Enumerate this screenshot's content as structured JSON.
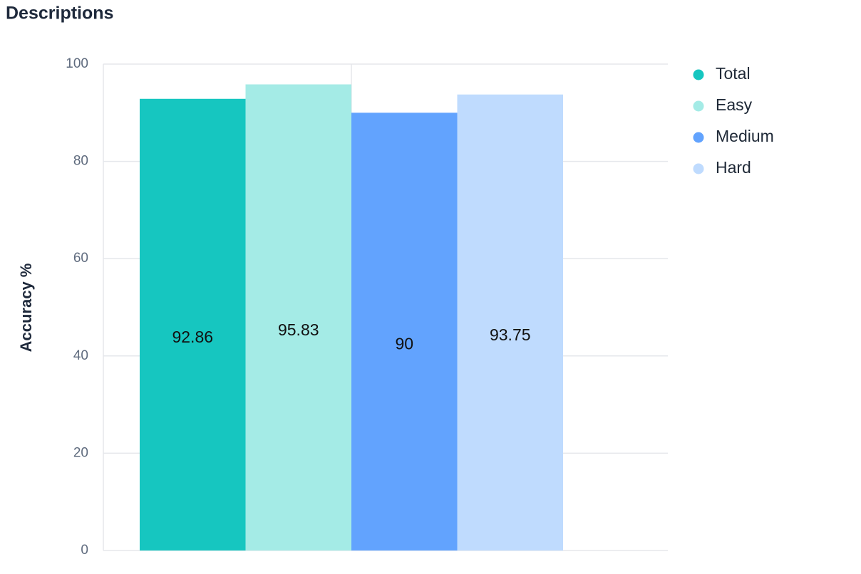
{
  "chart_data": {
    "type": "bar",
    "title": "Descriptions",
    "y_label": "Accuracy %",
    "categories": [
      null
    ],
    "series": [
      {
        "name": "Total",
        "color": "#16c6c0",
        "values": [
          92.86
        ]
      },
      {
        "name": "Easy",
        "color": "#a4ebe6",
        "values": [
          95.83
        ]
      },
      {
        "name": "Medium",
        "color": "#62a3fe",
        "values": [
          90
        ]
      },
      {
        "name": "Hard",
        "color": "#bfdbfe",
        "values": [
          93.75
        ]
      }
    ],
    "ylim": [
      0,
      100
    ],
    "yticks": [
      0,
      20,
      40,
      60,
      80,
      100
    ],
    "grid": true,
    "legend": "right"
  }
}
